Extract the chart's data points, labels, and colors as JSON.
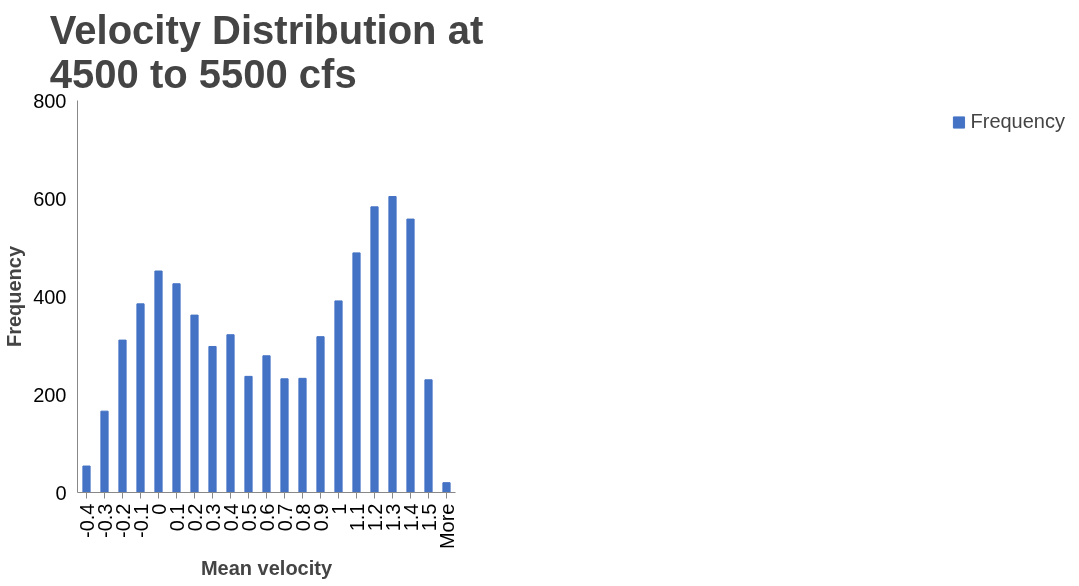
{
  "chart_data": {
    "type": "bar",
    "title": "Velocity Distribution at\n4500 to 5500 cfs",
    "xlabel": "Mean velocity",
    "ylabel": "Frequency",
    "categories": [
      "-0.4",
      "-0.3",
      "-0.2",
      "-0.1",
      "0",
      "0.1",
      "0.2",
      "0.3",
      "0.4",
      "0.5",
      "0.6",
      "0.7",
      "0.8",
      "0.9",
      "1",
      "1.1",
      "1.2",
      "1.3",
      "1.4",
      "1.5",
      "More"
    ],
    "series": [
      {
        "name": "Frequency",
        "color": "#4472c4",
        "values": [
          54,
          166,
          311,
          385,
          452,
          426,
          362,
          298,
          322,
          237,
          279,
          232,
          233,
          318,
          391,
          489,
          583,
          604,
          558,
          230,
          20
        ]
      }
    ],
    "ylim": [
      0,
      800
    ],
    "yticks": [
      0,
      200,
      400,
      600,
      800
    ],
    "grid": false,
    "legend": "right"
  }
}
